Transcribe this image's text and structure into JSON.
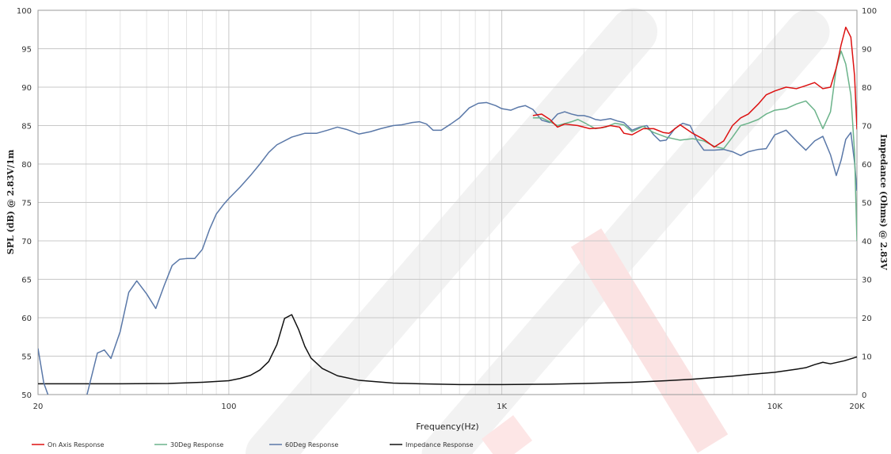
{
  "chart_data": {
    "type": "line",
    "xscale": "log",
    "xlabel": "Frequency(Hz)",
    "ylabel": "SPL (dB) @ 2.83V/1m",
    "y2label": "Impedance (Ohms) @ 2.83V",
    "xlim": [
      20,
      20000
    ],
    "ylim": [
      50,
      100
    ],
    "y2lim": [
      0,
      100
    ],
    "grid": true,
    "legend_position": "bottom-left",
    "x_ticks": [
      20,
      100,
      1000,
      10000,
      20000
    ],
    "x_tick_labels": [
      "20",
      "100",
      "1K",
      "10K",
      "20K"
    ],
    "y_ticks": [
      50,
      55,
      60,
      65,
      70,
      75,
      80,
      85,
      90,
      95,
      100
    ],
    "y2_ticks": [
      0,
      10,
      20,
      30,
      40,
      50,
      60,
      70,
      80,
      90,
      100
    ],
    "series": [
      {
        "name": "On Axis Response",
        "color": "#dd1111",
        "axis": "left",
        "points": [
          [
            1300,
            86.3
          ],
          [
            1400,
            86.5
          ],
          [
            1500,
            85.8
          ],
          [
            1600,
            84.8
          ],
          [
            1700,
            85.2
          ],
          [
            1900,
            85.0
          ],
          [
            2100,
            84.6
          ],
          [
            2300,
            84.7
          ],
          [
            2500,
            85.0
          ],
          [
            2700,
            84.8
          ],
          [
            2800,
            84.0
          ],
          [
            3000,
            83.8
          ],
          [
            3300,
            84.6
          ],
          [
            3600,
            84.6
          ],
          [
            3900,
            84.1
          ],
          [
            4100,
            84.0
          ],
          [
            4500,
            85.1
          ],
          [
            5000,
            84.0
          ],
          [
            5500,
            83.2
          ],
          [
            6000,
            82.2
          ],
          [
            6500,
            83.0
          ],
          [
            7000,
            85.0
          ],
          [
            7500,
            86.0
          ],
          [
            8000,
            86.5
          ],
          [
            8700,
            87.8
          ],
          [
            9300,
            89.0
          ],
          [
            10000,
            89.5
          ],
          [
            11000,
            90.0
          ],
          [
            12000,
            89.8
          ],
          [
            13000,
            90.2
          ],
          [
            14000,
            90.6
          ],
          [
            15000,
            89.8
          ],
          [
            16000,
            90.0
          ],
          [
            16800,
            92.5
          ],
          [
            17500,
            95.5
          ],
          [
            18200,
            97.8
          ],
          [
            19000,
            96.5
          ],
          [
            19600,
            91.5
          ],
          [
            20000,
            84.5
          ]
        ]
      },
      {
        "name": "30Deg Response",
        "color": "#6bb38a",
        "axis": "left",
        "points": [
          [
            1300,
            86.0
          ],
          [
            1400,
            86.0
          ],
          [
            1500,
            85.5
          ],
          [
            1600,
            85.0
          ],
          [
            1800,
            85.5
          ],
          [
            1900,
            85.8
          ],
          [
            2000,
            85.4
          ],
          [
            2200,
            84.6
          ],
          [
            2400,
            84.8
          ],
          [
            2600,
            85.3
          ],
          [
            2800,
            85.1
          ],
          [
            3000,
            84.2
          ],
          [
            3300,
            84.9
          ],
          [
            3600,
            84.1
          ],
          [
            4000,
            83.5
          ],
          [
            4500,
            83.1
          ],
          [
            5000,
            83.3
          ],
          [
            5500,
            83.0
          ],
          [
            6000,
            82.3
          ],
          [
            6500,
            82.0
          ],
          [
            7000,
            83.5
          ],
          [
            7500,
            85.0
          ],
          [
            8000,
            85.3
          ],
          [
            8700,
            85.8
          ],
          [
            9300,
            86.5
          ],
          [
            10000,
            87.0
          ],
          [
            11000,
            87.2
          ],
          [
            12000,
            87.8
          ],
          [
            13000,
            88.2
          ],
          [
            14000,
            87.0
          ],
          [
            15000,
            84.6
          ],
          [
            16000,
            86.8
          ],
          [
            16800,
            92.5
          ],
          [
            17500,
            94.7
          ],
          [
            18200,
            93.0
          ],
          [
            19000,
            89.0
          ],
          [
            19600,
            81.5
          ],
          [
            20000,
            70.0
          ]
        ]
      },
      {
        "name": "60Deg Response",
        "color": "#5a78a8",
        "axis": "left",
        "points": [
          [
            20,
            56.0
          ],
          [
            21,
            51.5
          ],
          [
            22,
            49.5
          ],
          [
            25,
            48.0
          ],
          [
            30,
            49.5
          ],
          [
            33,
            55.4
          ],
          [
            35,
            55.8
          ],
          [
            37,
            54.7
          ],
          [
            40,
            58.2
          ],
          [
            43,
            63.3
          ],
          [
            46,
            64.8
          ],
          [
            50,
            63.1
          ],
          [
            54,
            61.2
          ],
          [
            58,
            64.2
          ],
          [
            62,
            66.8
          ],
          [
            66,
            67.6
          ],
          [
            70,
            67.7
          ],
          [
            75,
            67.7
          ],
          [
            80,
            68.9
          ],
          [
            85,
            71.5
          ],
          [
            90,
            73.5
          ],
          [
            96,
            74.8
          ],
          [
            100,
            75.5
          ],
          [
            110,
            77.0
          ],
          [
            120,
            78.5
          ],
          [
            130,
            80.0
          ],
          [
            140,
            81.5
          ],
          [
            150,
            82.5
          ],
          [
            170,
            83.5
          ],
          [
            190,
            84.0
          ],
          [
            210,
            84.0
          ],
          [
            230,
            84.4
          ],
          [
            250,
            84.8
          ],
          [
            270,
            84.5
          ],
          [
            300,
            83.9
          ],
          [
            330,
            84.2
          ],
          [
            360,
            84.6
          ],
          [
            400,
            85.0
          ],
          [
            430,
            85.1
          ],
          [
            470,
            85.4
          ],
          [
            500,
            85.5
          ],
          [
            530,
            85.2
          ],
          [
            560,
            84.4
          ],
          [
            600,
            84.4
          ],
          [
            650,
            85.2
          ],
          [
            700,
            86.0
          ],
          [
            760,
            87.3
          ],
          [
            820,
            87.9
          ],
          [
            880,
            88.0
          ],
          [
            950,
            87.6
          ],
          [
            1000,
            87.2
          ],
          [
            1080,
            87.0
          ],
          [
            1150,
            87.4
          ],
          [
            1220,
            87.6
          ],
          [
            1300,
            87.1
          ],
          [
            1400,
            85.7
          ],
          [
            1500,
            85.4
          ],
          [
            1600,
            86.5
          ],
          [
            1700,
            86.8
          ],
          [
            1800,
            86.5
          ],
          [
            1900,
            86.3
          ],
          [
            2000,
            86.3
          ],
          [
            2100,
            86.1
          ],
          [
            2200,
            85.8
          ],
          [
            2300,
            85.7
          ],
          [
            2400,
            85.8
          ],
          [
            2500,
            85.9
          ],
          [
            2650,
            85.6
          ],
          [
            2800,
            85.4
          ],
          [
            3000,
            84.4
          ],
          [
            3200,
            84.8
          ],
          [
            3400,
            85.0
          ],
          [
            3600,
            83.8
          ],
          [
            3800,
            83.0
          ],
          [
            4000,
            83.1
          ],
          [
            4300,
            84.6
          ],
          [
            4600,
            85.3
          ],
          [
            4900,
            85.0
          ],
          [
            5200,
            83.0
          ],
          [
            5500,
            81.8
          ],
          [
            6000,
            81.8
          ],
          [
            6500,
            81.9
          ],
          [
            7000,
            81.6
          ],
          [
            7500,
            81.1
          ],
          [
            8000,
            81.6
          ],
          [
            8700,
            81.9
          ],
          [
            9300,
            82.0
          ],
          [
            10000,
            83.8
          ],
          [
            11000,
            84.4
          ],
          [
            12000,
            83.0
          ],
          [
            13000,
            81.8
          ],
          [
            14000,
            83.0
          ],
          [
            15000,
            83.6
          ],
          [
            16000,
            81.2
          ],
          [
            16800,
            78.5
          ],
          [
            17500,
            80.5
          ],
          [
            18200,
            83.2
          ],
          [
            19000,
            84.1
          ],
          [
            19600,
            80.2
          ],
          [
            20000,
            76.5
          ]
        ]
      },
      {
        "name": "Impedance Response",
        "color": "#111111",
        "axis": "right",
        "points": [
          [
            20,
            2.8
          ],
          [
            30,
            2.8
          ],
          [
            40,
            2.8
          ],
          [
            60,
            2.9
          ],
          [
            80,
            3.2
          ],
          [
            100,
            3.6
          ],
          [
            110,
            4.2
          ],
          [
            120,
            5.0
          ],
          [
            130,
            6.4
          ],
          [
            140,
            8.6
          ],
          [
            150,
            13.0
          ],
          [
            160,
            19.8
          ],
          [
            170,
            20.8
          ],
          [
            180,
            17.0
          ],
          [
            190,
            12.5
          ],
          [
            200,
            9.5
          ],
          [
            220,
            6.8
          ],
          [
            250,
            4.9
          ],
          [
            300,
            3.7
          ],
          [
            400,
            3.0
          ],
          [
            500,
            2.8
          ],
          [
            700,
            2.6
          ],
          [
            1000,
            2.6
          ],
          [
            1500,
            2.7
          ],
          [
            2000,
            2.9
          ],
          [
            3000,
            3.2
          ],
          [
            4000,
            3.6
          ],
          [
            5000,
            4.0
          ],
          [
            7000,
            4.8
          ],
          [
            8000,
            5.2
          ],
          [
            10000,
            5.8
          ],
          [
            12000,
            6.6
          ],
          [
            13000,
            7.0
          ],
          [
            14000,
            7.8
          ],
          [
            15000,
            8.4
          ],
          [
            16000,
            8.0
          ],
          [
            18000,
            8.8
          ],
          [
            20000,
            9.8
          ]
        ]
      }
    ]
  }
}
